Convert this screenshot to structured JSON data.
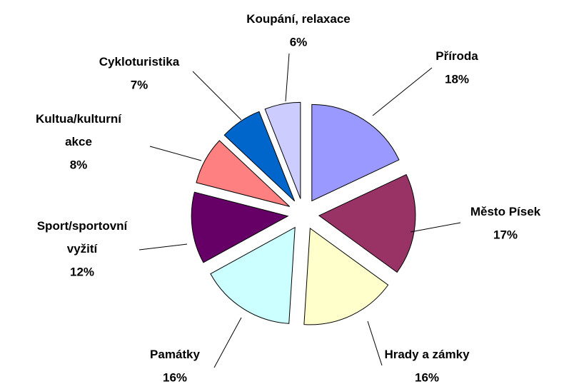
{
  "chart_data": {
    "type": "pie",
    "categories": [
      "Příroda",
      "Město Písek",
      "Hrady a zámky",
      "Památky",
      "Sport/sportovní vyžití",
      "Kultua/kulturní akce",
      "Cykloturistika",
      "Koupání, relaxace"
    ],
    "values": [
      18,
      17,
      16,
      16,
      12,
      8,
      7,
      6
    ],
    "value_labels": [
      "18%",
      "17%",
      "16%",
      "16%",
      "12%",
      "8%",
      "7%",
      "6%"
    ],
    "colors": [
      "#9999ff",
      "#993366",
      "#ffffcc",
      "#ccffff",
      "#660066",
      "#ff8080",
      "#0066cc",
      "#ccccff"
    ]
  }
}
